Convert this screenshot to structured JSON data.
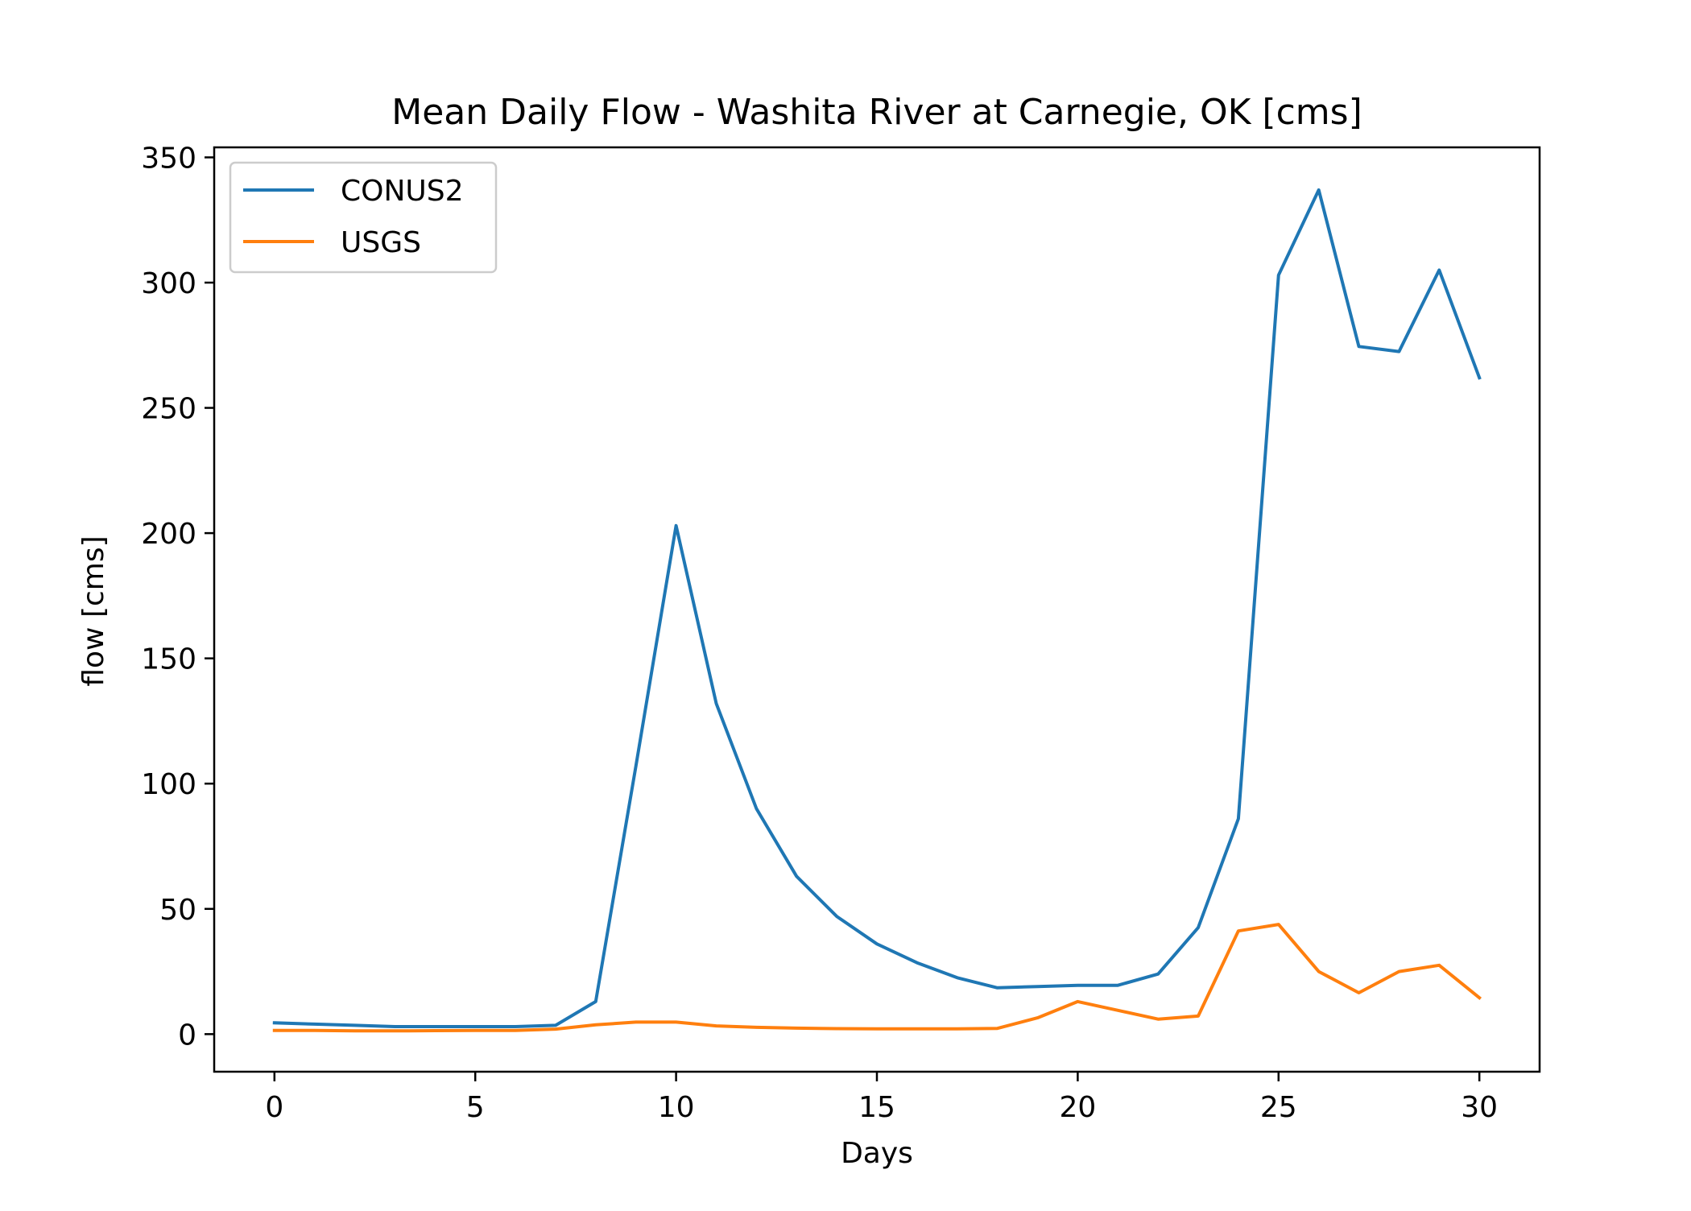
{
  "chart_data": {
    "type": "line",
    "title": "Mean Daily Flow - Washita River at Carnegie, OK [cms]",
    "xlabel": "Days",
    "ylabel": "flow [cms]",
    "xlim": [
      -1.5,
      31.5
    ],
    "ylim": [
      -15,
      354
    ],
    "xticks": [
      0,
      5,
      10,
      15,
      20,
      25,
      30
    ],
    "yticks": [
      0,
      50,
      100,
      150,
      200,
      250,
      300,
      350
    ],
    "grid": false,
    "legend_position": "top-left",
    "x": [
      0,
      1,
      2,
      3,
      4,
      5,
      6,
      7,
      8,
      9,
      10,
      11,
      12,
      13,
      14,
      15,
      16,
      17,
      18,
      19,
      20,
      21,
      22,
      23,
      24,
      25,
      26,
      27,
      28,
      29,
      30
    ],
    "series": [
      {
        "name": "CONUS2",
        "color": "#1f77b4",
        "values": [
          4.5,
          4,
          3.5,
          3,
          3,
          3,
          3,
          3.5,
          13,
          107,
          203,
          132,
          90,
          63,
          47,
          36,
          28.5,
          22.5,
          18.5,
          19,
          19.5,
          19.5,
          24,
          42.5,
          86,
          303,
          337,
          274.5,
          272.5,
          305,
          262
        ]
      },
      {
        "name": "USGS",
        "color": "#ff7f0e",
        "values": [
          1.5,
          1.5,
          1.3,
          1.3,
          1.4,
          1.5,
          1.5,
          2,
          3.7,
          4.8,
          4.8,
          3.3,
          2.7,
          2.4,
          2.2,
          2.1,
          2.1,
          2.1,
          2.3,
          6.5,
          13,
          9.5,
          6,
          7.2,
          41.2,
          43.8,
          25,
          16.5,
          25,
          27.5,
          14.5
        ]
      }
    ]
  }
}
